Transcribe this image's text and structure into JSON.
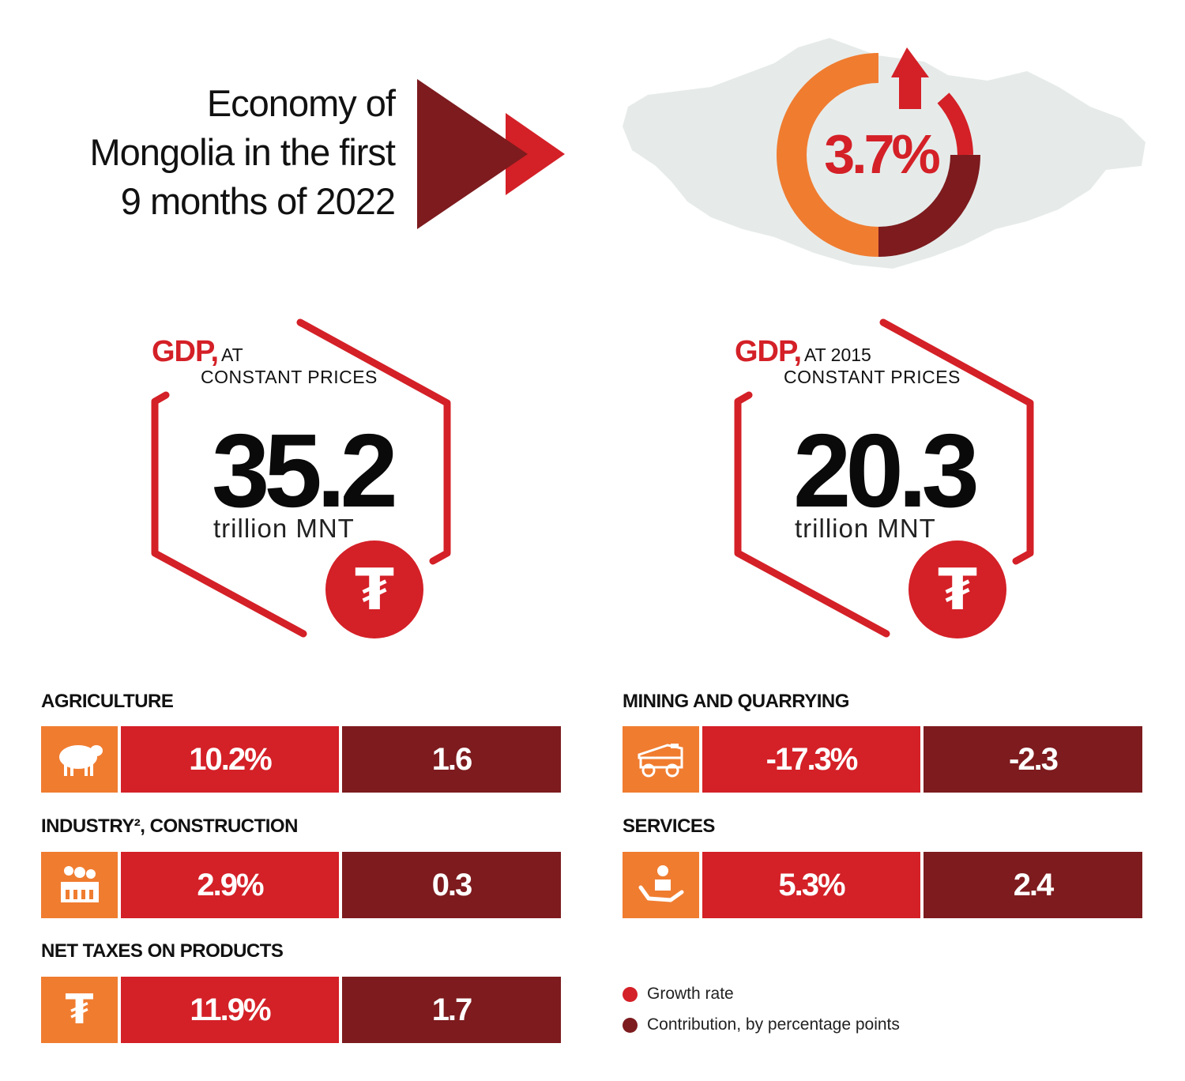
{
  "title": {
    "line1": "Economy of",
    "line2": "Mongolia in the first",
    "line3": "9 months of 2022"
  },
  "headline_growth": {
    "value": "3.7%"
  },
  "gdp_cards": [
    {
      "gdp": "GDP,",
      "sub1": "AT",
      "sub2": "CONSTANT PRICES",
      "value": "35.2",
      "unit": "trillion MNT",
      "icon": "tugrik-icon"
    },
    {
      "gdp": "GDP,",
      "sub1": "AT 2015",
      "sub2": "CONSTANT PRICES",
      "value": "20.3",
      "unit": "trillion MNT",
      "icon": "tugrik-icon"
    }
  ],
  "currency_symbol": "₮",
  "sectors": {
    "agriculture": {
      "label": "AGRICULTURE",
      "growth": "10.2%",
      "contribution": "1.6",
      "icon": "sheep-icon"
    },
    "mining": {
      "label": "MINING AND QUARRYING",
      "growth": "-17.3%",
      "contribution": "-2.3",
      "icon": "dump-truck-icon"
    },
    "industry": {
      "label": "INDUSTRY², CONSTRUCTION",
      "growth": "2.9%",
      "contribution": "0.3",
      "icon": "factory-icon"
    },
    "services": {
      "label": "SERVICES",
      "growth": "5.3%",
      "contribution": "2.4",
      "icon": "hand-person-icon"
    },
    "net_taxes": {
      "label": "NET TAXES ON PRODUCTS",
      "growth": "11.9%",
      "contribution": "1.7",
      "icon": "tugrik-icon"
    }
  },
  "legend": {
    "growth": "Growth rate",
    "contribution": "Contribution, by percentage points"
  },
  "colors": {
    "red": "#d42027",
    "dark_red": "#7d1b1e",
    "orange": "#f07c30",
    "map_grey": "#e6ebea"
  }
}
